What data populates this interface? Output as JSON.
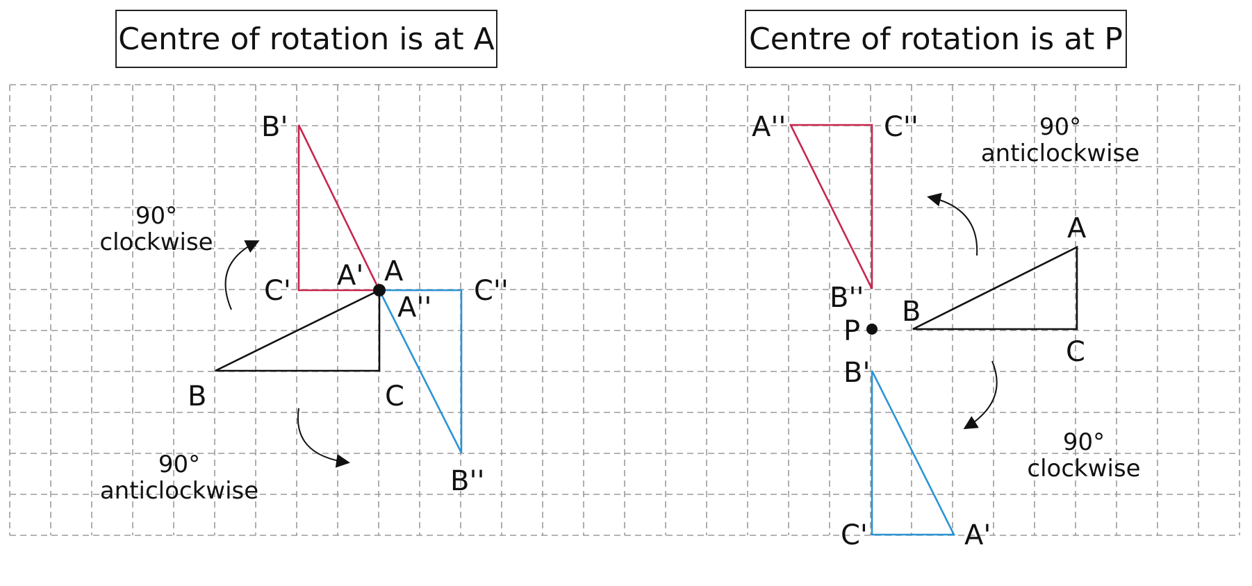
{
  "titles": {
    "left": "Centre of rotation is at A",
    "right": "Centre of rotation is at P"
  },
  "colors": {
    "original": "#111111",
    "clockwise_image": "#c8254e",
    "anticlockwise_image": "#2a93d5",
    "grid": "#9a9a9a"
  },
  "left_diagram": {
    "centre": "A",
    "vertex_labels": {
      "A": "A",
      "B": "B",
      "C": "C",
      "A1": "A'",
      "B1": "B'",
      "C1": "C'",
      "A2": "A''",
      "B2": "B''",
      "C2": "C''"
    },
    "notes": {
      "clockwise_deg": "90°",
      "clockwise_word": "clockwise",
      "anticlockwise_deg": "90°",
      "anticlockwise_word": "anticlockwise"
    }
  },
  "right_diagram": {
    "centre": "P",
    "vertex_labels": {
      "P": "P",
      "A": "A",
      "B": "B",
      "C": "C",
      "A1": "A'",
      "B1": "B'",
      "C1": "C'",
      "A2": "A''",
      "B2": "B''",
      "C2": "C''"
    },
    "notes": {
      "anticlockwise_deg": "90°",
      "anticlockwise_word": "anticlockwise",
      "clockwise_deg": "90°",
      "clockwise_word": "clockwise"
    }
  }
}
